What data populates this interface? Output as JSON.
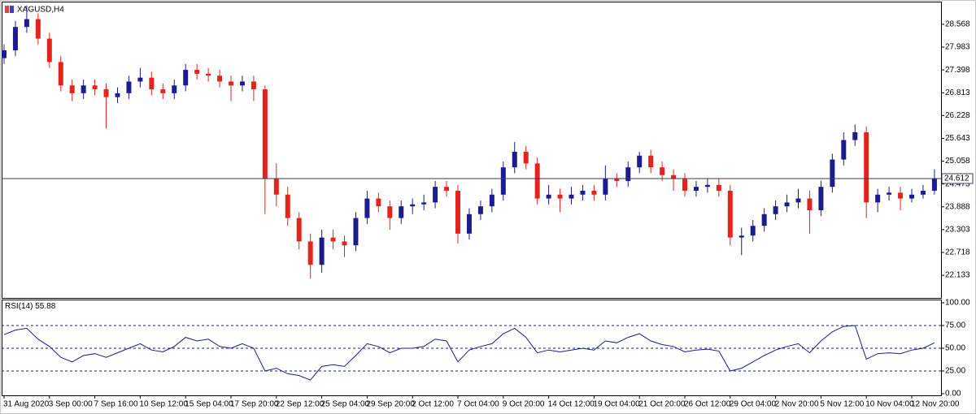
{
  "chart_data": {
    "type": "candlestick",
    "title": "XAGUSD,H4",
    "up_color": "#1c1c8a",
    "down_color": "#e3241d",
    "ylim": [
      21.552,
      29.149
    ],
    "yticks": [
      28.568,
      27.983,
      27.398,
      26.813,
      26.228,
      25.643,
      25.058,
      24.473,
      23.888,
      23.303,
      22.718,
      22.133
    ],
    "current_price": 24.612,
    "categories": [
      "31 Aug 2020",
      null,
      null,
      null,
      "3 Sep 00:00",
      null,
      null,
      null,
      "7 Sep 16:00",
      null,
      null,
      null,
      "10 Sep 12:00",
      null,
      null,
      null,
      "15 Sep 04:00",
      null,
      null,
      null,
      "17 Sep 20:00",
      null,
      null,
      null,
      "22 Sep 12:00",
      null,
      null,
      null,
      "25 Sep 04:00",
      null,
      null,
      null,
      "29 Sep 20:00",
      null,
      null,
      null,
      "2 Oct 12:00",
      null,
      null,
      null,
      "7 Oct 04:00",
      null,
      null,
      null,
      "9 Oct 20:00",
      null,
      null,
      null,
      "14 Oct 12:00",
      null,
      null,
      null,
      "19 Oct 04:00",
      null,
      null,
      null,
      "21 Oct 20:00",
      null,
      null,
      null,
      "26 Oct 12:00",
      null,
      null,
      null,
      "29 Oct 04:00",
      null,
      null,
      null,
      "2 Nov 20:00",
      null,
      null,
      null,
      "5 Nov 12:00",
      null,
      null,
      null,
      "10 Nov 04:00",
      null,
      null,
      null,
      "12 Nov 20:00",
      null,
      null
    ],
    "candles": [
      [
        27.7,
        28.05,
        27.55,
        27.9
      ],
      [
        27.9,
        28.65,
        27.75,
        28.5
      ],
      [
        28.5,
        29.05,
        28.35,
        28.7
      ],
      [
        28.7,
        28.85,
        28.05,
        28.2
      ],
      [
        28.2,
        28.35,
        27.45,
        27.6
      ],
      [
        27.6,
        27.75,
        26.85,
        27.0
      ],
      [
        27.0,
        27.15,
        26.6,
        26.8
      ],
      [
        26.8,
        27.15,
        26.65,
        27.0
      ],
      [
        27.0,
        27.15,
        26.75,
        26.9
      ],
      [
        26.9,
        27.05,
        25.9,
        26.7
      ],
      [
        26.7,
        26.95,
        26.55,
        26.8
      ],
      [
        26.8,
        27.25,
        26.65,
        27.1
      ],
      [
        27.1,
        27.45,
        26.95,
        27.2
      ],
      [
        27.2,
        27.35,
        26.75,
        26.9
      ],
      [
        26.9,
        27.05,
        26.65,
        26.8
      ],
      [
        26.8,
        27.15,
        26.65,
        27.0
      ],
      [
        27.0,
        27.55,
        26.85,
        27.4
      ],
      [
        27.4,
        27.55,
        27.15,
        27.3
      ],
      [
        27.3,
        27.45,
        27.1,
        27.25
      ],
      [
        27.25,
        27.4,
        26.95,
        27.1
      ],
      [
        27.1,
        27.25,
        26.6,
        27.0
      ],
      [
        27.0,
        27.25,
        26.85,
        27.1
      ],
      [
        27.1,
        27.25,
        26.6,
        26.9
      ],
      [
        26.9,
        27.0,
        23.7,
        24.6
      ],
      [
        24.6,
        25.0,
        23.9,
        24.2
      ],
      [
        24.2,
        24.4,
        23.4,
        23.6
      ],
      [
        23.6,
        23.75,
        22.8,
        23.0
      ],
      [
        23.0,
        23.2,
        22.05,
        22.4
      ],
      [
        22.4,
        23.3,
        22.2,
        23.1
      ],
      [
        23.1,
        23.3,
        22.8,
        23.0
      ],
      [
        23.0,
        23.15,
        22.6,
        22.9
      ],
      [
        22.9,
        23.75,
        22.75,
        23.6
      ],
      [
        23.6,
        24.3,
        23.45,
        24.1
      ],
      [
        24.1,
        24.25,
        23.75,
        23.9
      ],
      [
        23.9,
        24.05,
        23.3,
        23.6
      ],
      [
        23.6,
        24.05,
        23.45,
        23.9
      ],
      [
        23.9,
        24.1,
        23.7,
        23.95
      ],
      [
        23.95,
        24.2,
        23.8,
        24.0
      ],
      [
        24.0,
        24.55,
        23.85,
        24.4
      ],
      [
        24.4,
        24.55,
        24.15,
        24.3
      ],
      [
        24.3,
        24.45,
        22.95,
        23.2
      ],
      [
        23.2,
        23.85,
        23.05,
        23.7
      ],
      [
        23.7,
        24.05,
        23.55,
        23.9
      ],
      [
        23.9,
        24.35,
        23.75,
        24.2
      ],
      [
        24.2,
        25.05,
        24.05,
        24.9
      ],
      [
        24.9,
        25.55,
        24.75,
        25.3
      ],
      [
        25.3,
        25.45,
        24.85,
        25.0
      ],
      [
        25.0,
        25.15,
        23.95,
        24.1
      ],
      [
        24.1,
        24.45,
        23.95,
        24.2
      ],
      [
        24.2,
        24.35,
        23.75,
        24.1
      ],
      [
        24.1,
        24.4,
        23.95,
        24.2
      ],
      [
        24.2,
        24.45,
        24.05,
        24.3
      ],
      [
        24.3,
        24.45,
        24.05,
        24.2
      ],
      [
        24.2,
        24.95,
        24.05,
        24.6
      ],
      [
        24.6,
        24.75,
        24.4,
        24.55
      ],
      [
        24.55,
        25.05,
        24.4,
        24.9
      ],
      [
        24.9,
        25.3,
        24.75,
        25.2
      ],
      [
        25.2,
        25.35,
        24.75,
        24.9
      ],
      [
        24.9,
        25.05,
        24.55,
        24.7
      ],
      [
        24.7,
        24.85,
        24.3,
        24.6
      ],
      [
        24.6,
        24.75,
        24.15,
        24.3
      ],
      [
        24.3,
        24.55,
        24.15,
        24.4
      ],
      [
        24.4,
        24.6,
        24.25,
        24.45
      ],
      [
        24.45,
        24.6,
        24.15,
        24.3
      ],
      [
        24.3,
        24.45,
        22.9,
        23.1
      ],
      [
        23.1,
        23.35,
        22.65,
        23.15
      ],
      [
        23.15,
        23.55,
        23.0,
        23.4
      ],
      [
        23.4,
        23.85,
        23.25,
        23.7
      ],
      [
        23.7,
        24.05,
        23.55,
        23.9
      ],
      [
        23.9,
        24.2,
        23.75,
        24.0
      ],
      [
        24.0,
        24.35,
        23.85,
        24.1
      ],
      [
        24.1,
        24.3,
        23.2,
        23.8
      ],
      [
        23.8,
        24.55,
        23.65,
        24.4
      ],
      [
        24.4,
        25.25,
        24.25,
        25.1
      ],
      [
        25.1,
        25.8,
        24.95,
        25.6
      ],
      [
        25.6,
        26.0,
        25.45,
        25.8
      ],
      [
        25.8,
        25.95,
        23.6,
        24.0
      ],
      [
        24.0,
        24.35,
        23.75,
        24.2
      ],
      [
        24.2,
        24.4,
        24.05,
        24.25
      ],
      [
        24.25,
        24.4,
        23.8,
        24.1
      ],
      [
        24.1,
        24.35,
        24.0,
        24.2
      ],
      [
        24.2,
        24.45,
        24.1,
        24.3
      ],
      [
        24.3,
        24.85,
        24.2,
        24.612
      ]
    ],
    "rsi": {
      "name": "RSI(14)",
      "current": 55.88,
      "color": "#1c1c8a",
      "ylim": [
        0,
        100
      ],
      "yticks": [
        {
          "value": 100,
          "label": "100.00"
        },
        {
          "value": 75,
          "label": "75.00"
        },
        {
          "value": 50,
          "label": "50.00"
        },
        {
          "value": 25,
          "label": "25.00"
        },
        {
          "value": 0,
          "label": "0.00"
        }
      ],
      "levels": [
        75,
        50,
        25
      ],
      "values": [
        65,
        70,
        72,
        60,
        52,
        40,
        35,
        42,
        44,
        40,
        45,
        50,
        55,
        48,
        46,
        52,
        62,
        58,
        60,
        52,
        50,
        55,
        50,
        25,
        28,
        22,
        20,
        15,
        30,
        32,
        30,
        42,
        55,
        52,
        45,
        50,
        50,
        52,
        60,
        58,
        35,
        48,
        52,
        55,
        66,
        72,
        62,
        45,
        48,
        46,
        48,
        50,
        48,
        58,
        56,
        62,
        66,
        58,
        54,
        52,
        46,
        48,
        49,
        47,
        25,
        28,
        35,
        42,
        48,
        52,
        55,
        45,
        58,
        68,
        74,
        75,
        38,
        44,
        45,
        44,
        48,
        50,
        56
      ]
    }
  }
}
